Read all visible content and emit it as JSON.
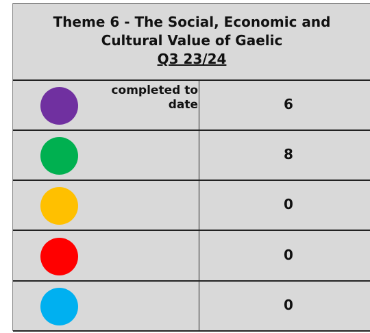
{
  "header": {
    "title_lines": [
      "Theme 6 - The Social, Economic and",
      "Cultural Value of Gaelic",
      "Q3 23/24"
    ]
  },
  "rows": [
    {
      "color": "#7030a0",
      "label": "completed to date",
      "value": 6
    },
    {
      "color": "#00b050",
      "value": 8
    },
    {
      "color": "#ffc000",
      "value": 0
    },
    {
      "color": "#ff0000",
      "value": 0
    },
    {
      "color": "#00b0f0",
      "value": 0
    }
  ]
}
